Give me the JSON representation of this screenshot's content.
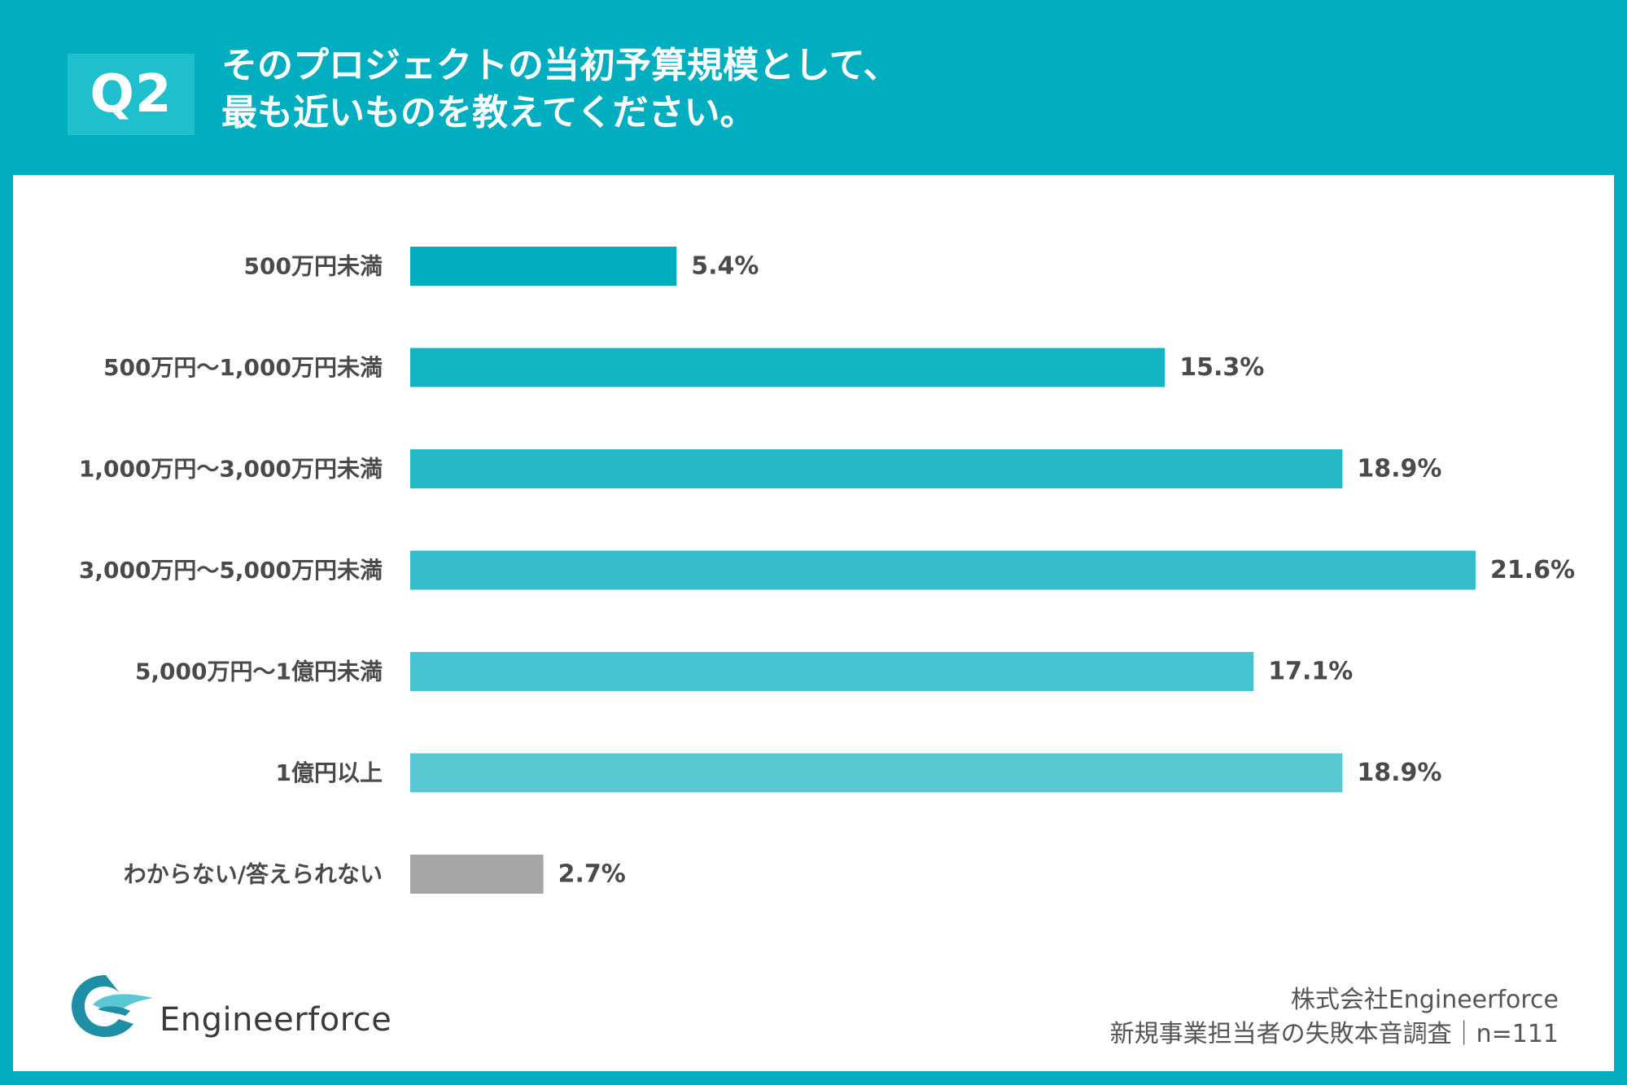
{
  "header": {
    "badge": "Q2",
    "question_line1": "そのプロジェクトの当初予算規模として、",
    "question_line2": "最も近いものを教えてください。"
  },
  "chart_data": {
    "type": "bar",
    "orientation": "horizontal",
    "categories": [
      "500万円未満",
      "500万円〜1,000万円未満",
      "1,000万円〜3,000万円未満",
      "3,000万円〜5,000万円未満",
      "5,000万円〜1億円未満",
      "1億円以上",
      "わからない/答えられない"
    ],
    "values": [
      5.4,
      15.3,
      18.9,
      21.6,
      17.1,
      18.9,
      2.7
    ],
    "value_labels": [
      "5.4%",
      "15.3%",
      "18.9%",
      "21.6%",
      "17.1%",
      "18.9%",
      "2.7%"
    ],
    "colors": [
      "#00aebf",
      "#12b3c3",
      "#24b8c7",
      "#36bdcb",
      "#47c3cf",
      "#58c8d3",
      "#a6a6a6"
    ],
    "xlim": [
      0,
      21.6
    ],
    "grid": false
  },
  "footer": {
    "brand": "Engineerforce",
    "company": "株式会社Engineerforce",
    "survey": "新規事業担当者の失敗本音調査｜n=111"
  },
  "colors": {
    "brand_teal": "#00aebf",
    "badge_bg": "#1fbfcd",
    "label_text": "#4a4a4a",
    "logo_dark": "#1e8fa5",
    "logo_light": "#5cc7d4"
  },
  "icons": {
    "logo": "bird-logo-icon"
  }
}
